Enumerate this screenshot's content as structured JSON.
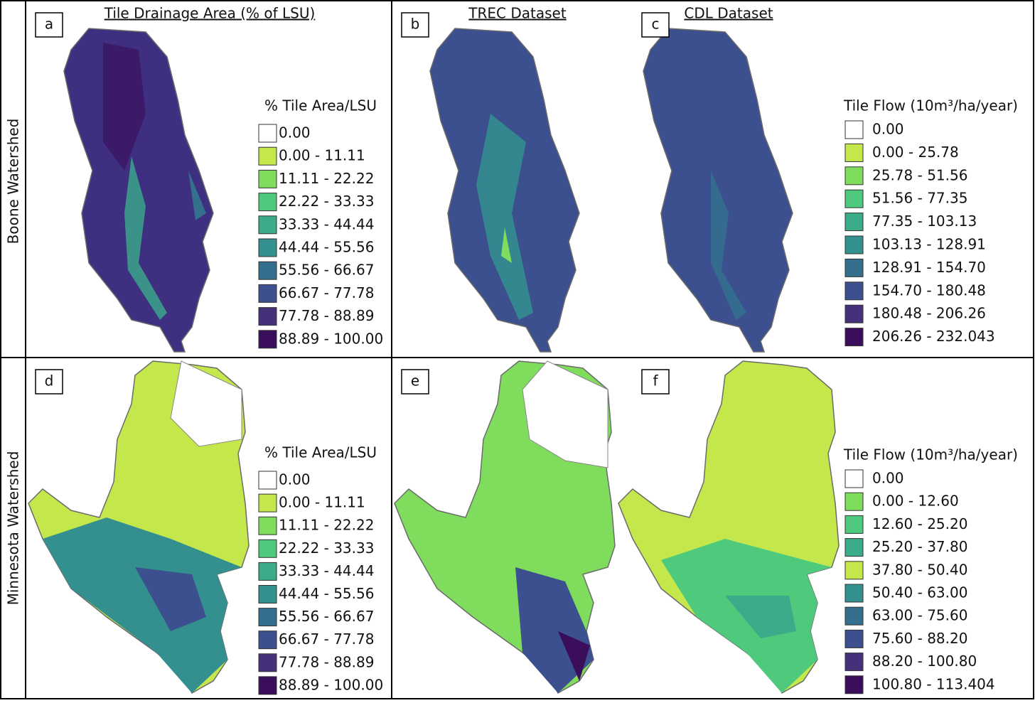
{
  "row_labels": [
    "Boone Watershed",
    "Minnesota Watershed"
  ],
  "panels": [
    {
      "label": "a",
      "title": "Tile Drainage Area (% of LSU)"
    },
    {
      "label": "b",
      "title": "TREC Dataset"
    },
    {
      "label": "c",
      "title": "CDL Dataset"
    },
    {
      "label": "d"
    },
    {
      "label": "e"
    },
    {
      "label": "f"
    }
  ],
  "legends": [
    {
      "title": "% Tile Area/LSU",
      "items": [
        {
          "label": "0.00",
          "color": "#ffffff"
        },
        {
          "label": "0.00 - 11.11",
          "color": "#c4e84c"
        },
        {
          "label": "11.11 - 22.22",
          "color": "#7fdc5c"
        },
        {
          "label": "22.22 - 33.33",
          "color": "#4fca7c"
        },
        {
          "label": "33.33 - 44.44",
          "color": "#3bab8a"
        },
        {
          "label": "44.44 - 55.56",
          "color": "#33908e"
        },
        {
          "label": "55.56 - 66.67",
          "color": "#34708e"
        },
        {
          "label": "66.67 - 77.78",
          "color": "#3c4f8e"
        },
        {
          "label": "77.78 - 88.89",
          "color": "#46307a"
        },
        {
          "label": "88.89 - 100.00",
          "color": "#3a0e5a"
        }
      ]
    },
    {
      "title": "Tile Flow (10m³/ha/year)",
      "items": [
        {
          "label": "0.00",
          "color": "#ffffff"
        },
        {
          "label": "0.00 - 25.78",
          "color": "#c4e84c"
        },
        {
          "label": "25.78 - 51.56",
          "color": "#7fdc5c"
        },
        {
          "label": "51.56 - 77.35",
          "color": "#4fca7c"
        },
        {
          "label": "77.35 - 103.13",
          "color": "#3bab8a"
        },
        {
          "label": "103.13 - 128.91",
          "color": "#33908e"
        },
        {
          "label": "128.91 - 154.70",
          "color": "#34708e"
        },
        {
          "label": "154.70 - 180.48",
          "color": "#3c4f8e"
        },
        {
          "label": "180.48 - 206.26",
          "color": "#46307a"
        },
        {
          "label": "206.26 - 232.043",
          "color": "#3a0e5a"
        }
      ]
    },
    {
      "title": "% Tile Area/LSU",
      "items": [
        {
          "label": "0.00",
          "color": "#ffffff"
        },
        {
          "label": "0.00 - 11.11",
          "color": "#c4e84c"
        },
        {
          "label": "11.11 - 22.22",
          "color": "#7fdc5c"
        },
        {
          "label": "22.22 - 33.33",
          "color": "#4fca7c"
        },
        {
          "label": "33.33 - 44.44",
          "color": "#3bab8a"
        },
        {
          "label": "44.44 - 55.56",
          "color": "#33908e"
        },
        {
          "label": "55.56 - 66.67",
          "color": "#34708e"
        },
        {
          "label": "66.67 - 77.78",
          "color": "#3c4f8e"
        },
        {
          "label": "77.78 - 88.89",
          "color": "#46307a"
        },
        {
          "label": "88.89 - 100.00",
          "color": "#3a0e5a"
        }
      ]
    },
    {
      "title": "Tile Flow (10m³/ha/year)",
      "items": [
        {
          "label": "0.00",
          "color": "#ffffff"
        },
        {
          "label": "0.00 - 12.60",
          "color": "#7fdc5c"
        },
        {
          "label": "12.60 - 25.20",
          "color": "#4fca7c"
        },
        {
          "label": "25.20 - 37.80",
          "color": "#3bab8a"
        },
        {
          "label": "37.80 - 50.40",
          "color": "#c4e84c"
        },
        {
          "label": "50.40 - 63.00",
          "color": "#33908e"
        },
        {
          "label": "63.00 - 75.60",
          "color": "#34708e"
        },
        {
          "label": "75.60 - 88.20",
          "color": "#3c4f8e"
        },
        {
          "label": "88.20 - 100.80",
          "color": "#46307a"
        },
        {
          "label": "100.80 - 113.404",
          "color": "#3a0e5a"
        }
      ]
    }
  ]
}
